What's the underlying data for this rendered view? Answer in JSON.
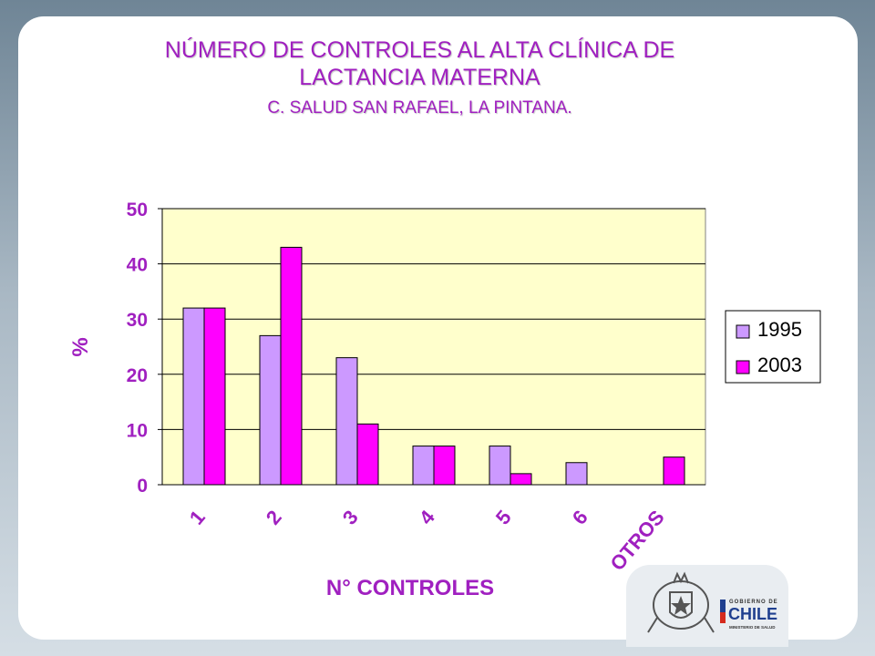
{
  "title_line1": "NÚMERO DE CONTROLES AL ALTA CLÍNICA DE",
  "title_line2": "LACTANCIA MATERNA",
  "subtitle": "C. SALUD SAN RAFAEL, LA PINTANA.",
  "colors": {
    "c1995": "#cc99ff",
    "c2003": "#ff00ff",
    "plot_bg": "#ffffcc",
    "text": "#a020c0"
  },
  "logo": {
    "line1": "GOBIERNO DE",
    "line2": "CHILE",
    "line3": "MINISTERIO DE SALUD"
  },
  "chart_data": {
    "type": "bar",
    "categories": [
      "1",
      "2",
      "3",
      "4",
      "5",
      "6",
      "OTROS"
    ],
    "series": [
      {
        "name": "1995",
        "values": [
          32,
          27,
          23,
          7,
          7,
          4,
          0
        ]
      },
      {
        "name": "2003",
        "values": [
          32,
          43,
          11,
          7,
          2,
          0,
          5
        ]
      }
    ],
    "xlabel": "N° CONTROLES",
    "ylabel": "%",
    "ylim": [
      0,
      50
    ],
    "yticks": [
      0,
      10,
      20,
      30,
      40,
      50
    ],
    "grid": true,
    "legend": "right"
  }
}
